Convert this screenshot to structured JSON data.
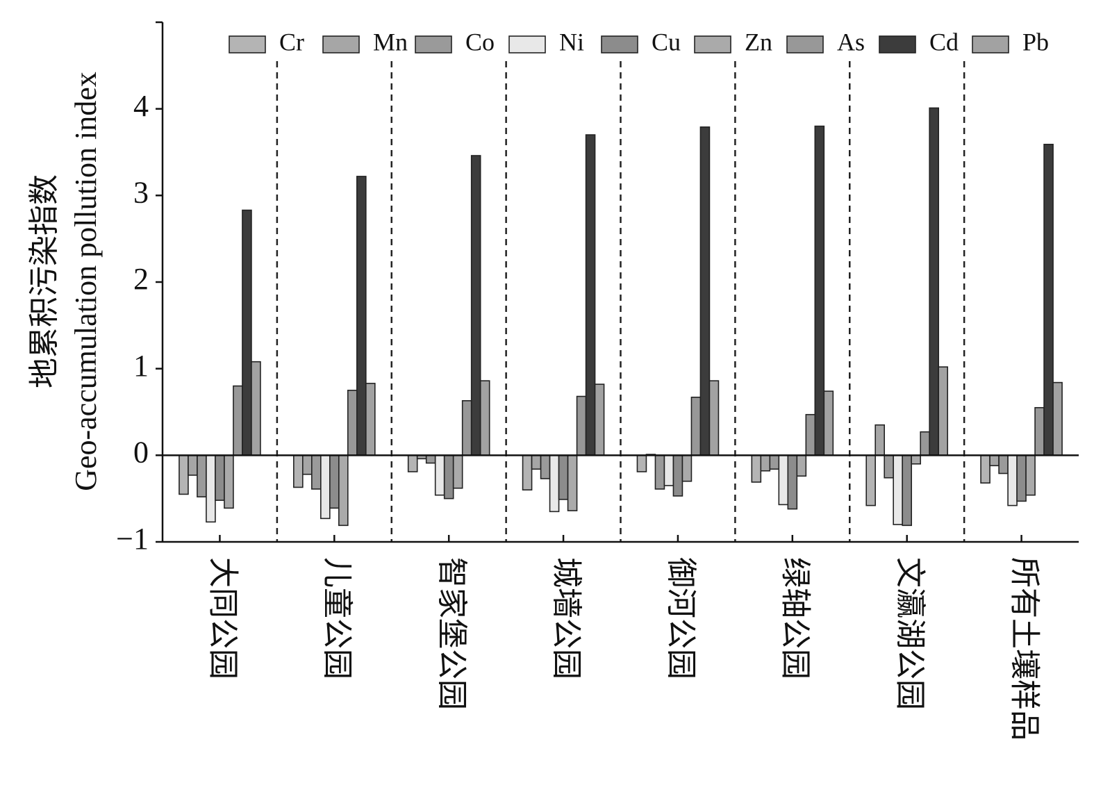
{
  "chart_data": {
    "type": "bar",
    "ylabel_cn": "地累积污染指数",
    "ylabel_en": "Geo-accumulation pollution index",
    "ylim": [
      -1,
      5
    ],
    "yticks": [
      -1,
      0,
      1,
      2,
      3,
      4
    ],
    "ytick_labels": [
      "−1",
      "0",
      "1",
      "2",
      "3",
      "4"
    ],
    "legend_position": "top",
    "categories": [
      "大同公园",
      "儿童公园",
      "智家堡公园",
      "城墙公园",
      "御河公园",
      "绿轴公园",
      "文瀛湖公园",
      "所有土壤样品"
    ],
    "series": [
      {
        "name": "Cr",
        "color": "#b4b4b4",
        "values": [
          -0.45,
          -0.37,
          -0.19,
          -0.4,
          -0.19,
          -0.31,
          -0.58,
          -0.32
        ]
      },
      {
        "name": "Mn",
        "color": "#a6a6a6",
        "values": [
          -0.23,
          -0.22,
          -0.04,
          -0.16,
          0.01,
          -0.18,
          0.35,
          -0.12
        ]
      },
      {
        "name": "Co",
        "color": "#9a9a9a",
        "values": [
          -0.48,
          -0.39,
          -0.09,
          -0.27,
          -0.39,
          -0.16,
          -0.26,
          -0.21
        ]
      },
      {
        "name": "Ni",
        "color": "#e8e8e8",
        "values": [
          -0.77,
          -0.73,
          -0.46,
          -0.65,
          -0.35,
          -0.57,
          -0.8,
          -0.58
        ]
      },
      {
        "name": "Cu",
        "color": "#8c8c8c",
        "values": [
          -0.52,
          -0.61,
          -0.5,
          -0.51,
          -0.47,
          -0.62,
          -0.81,
          -0.53
        ]
      },
      {
        "name": "Zn",
        "color": "#aaaaaa",
        "values": [
          -0.61,
          -0.81,
          -0.38,
          -0.64,
          -0.3,
          -0.24,
          -0.1,
          -0.46
        ]
      },
      {
        "name": "As",
        "color": "#989898",
        "values": [
          0.8,
          0.75,
          0.63,
          0.68,
          0.67,
          0.47,
          0.27,
          0.55
        ]
      },
      {
        "name": "Cd",
        "color": "#3c3c3c",
        "values": [
          2.83,
          3.22,
          3.46,
          3.7,
          3.79,
          3.8,
          4.01,
          3.59
        ]
      },
      {
        "name": "Pb",
        "color": "#a2a2a2",
        "values": [
          1.08,
          0.83,
          0.86,
          0.82,
          0.86,
          0.74,
          1.02,
          0.84
        ]
      }
    ]
  }
}
